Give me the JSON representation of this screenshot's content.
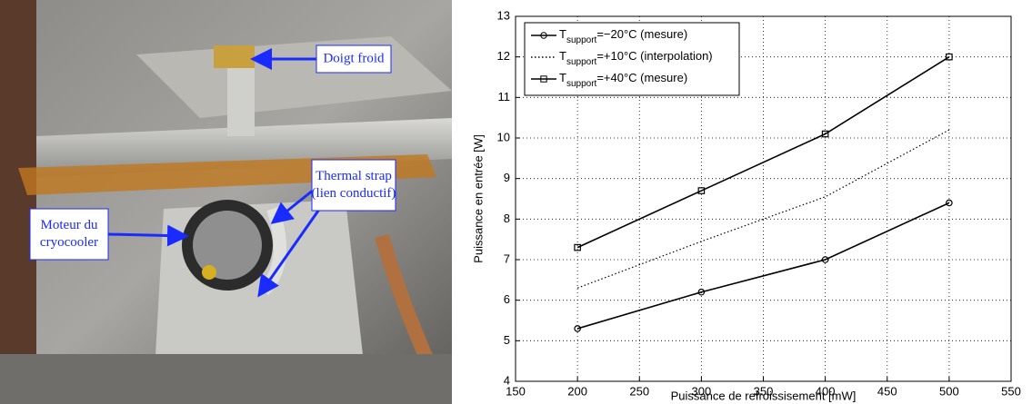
{
  "photo": {
    "labels": [
      {
        "lines": [
          "Doigt froid"
        ]
      },
      {
        "lines": [
          "Thermal strap",
          "(lien conductif)"
        ]
      },
      {
        "lines": [
          "Moteur du",
          "cryocooler"
        ]
      }
    ]
  },
  "chart_data": {
    "type": "line",
    "x_label": "Puissance de refroissisement [mW]",
    "y_label": "Puissance en entrée [W]",
    "x": [
      200,
      300,
      400,
      500
    ],
    "series": [
      {
        "name": "Tsupport=−20°C (mesure)",
        "color": "#000000",
        "marker": "circle",
        "dash": "solid",
        "values": [
          5.3,
          6.2,
          7.0,
          8.4
        ]
      },
      {
        "name": "Tsupport=+10°C (interpolation)",
        "color": "#000000",
        "marker": "none",
        "dash": "dotted",
        "values": [
          6.3,
          7.45,
          8.55,
          10.2
        ]
      },
      {
        "name": "Tsupport=+40°C (mesure)",
        "color": "#000000",
        "marker": "square",
        "dash": "solid",
        "values": [
          7.3,
          8.7,
          10.1,
          12.0
        ]
      }
    ],
    "xlim": [
      150,
      550
    ],
    "xticks": [
      150,
      200,
      250,
      300,
      350,
      400,
      450,
      500,
      550
    ],
    "ylim": [
      4,
      13
    ],
    "yticks": [
      4,
      5,
      6,
      7,
      8,
      9,
      10,
      11,
      12,
      13
    ],
    "grid": true,
    "legend": "upper-left"
  }
}
